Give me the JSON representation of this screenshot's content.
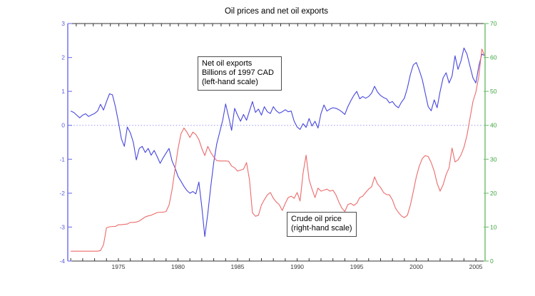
{
  "title": "Oil prices and net oil exports",
  "annotations": {
    "net_exports": {
      "lines": [
        "Net oil exports",
        "Billions of 1997 CAD",
        "(left-hand scale)"
      ]
    },
    "crude_price": {
      "lines": [
        "Crude oil price",
        "(right-hand scale)"
      ]
    }
  },
  "colors": {
    "blue_line": "#4747dd",
    "red_line": "#ec6b6b",
    "left_axis": "#7b7bef",
    "left_label": "#5b5be0",
    "right_axis": "#7cc57c",
    "right_label": "#3fa43f",
    "zero_line": "#9b9bf2",
    "frame": "#333333",
    "tick_label": "#3a3a3a"
  },
  "chart_data": {
    "type": "line",
    "title": "Oil prices and net oil exports",
    "x_start": 1971.0,
    "x_step": 0.25,
    "x_range": [
      1970.75,
      2005.77
    ],
    "x_ticks_labeled": [
      1975,
      1980,
      1985,
      1990,
      1995,
      2000,
      2005
    ],
    "x_ticks_minor_start": 1971,
    "x_ticks_minor_end": 2005,
    "top_tick_count": 50,
    "grid": false,
    "zero_line_left_scale": true,
    "left_axis": {
      "label": "Net oil exports, Billions of 1997 CAD",
      "range": [
        -4,
        3
      ],
      "ticks": [
        3,
        2,
        1,
        0,
        -1,
        -2,
        -3,
        -4
      ]
    },
    "right_axis": {
      "label": "Crude oil price",
      "range": [
        0,
        70
      ],
      "ticks": [
        70,
        60,
        50,
        40,
        30,
        20,
        10,
        0
      ]
    },
    "series": [
      {
        "id": "net-oil-exports",
        "name": "Net oil exports (left-hand scale)",
        "scale": "left",
        "color_key": "blue_line",
        "values": [
          0.42,
          0.38,
          0.3,
          0.22,
          0.3,
          0.34,
          0.26,
          0.31,
          0.35,
          0.42,
          0.62,
          0.45,
          0.7,
          0.93,
          0.9,
          0.55,
          0.1,
          -0.4,
          -0.62,
          -0.05,
          -0.22,
          -0.5,
          -1.02,
          -0.68,
          -0.62,
          -0.8,
          -0.68,
          -0.88,
          -0.74,
          -0.92,
          -1.12,
          -0.96,
          -0.82,
          -0.68,
          -1.05,
          -1.25,
          -1.5,
          -1.65,
          -1.8,
          -1.92,
          -2.0,
          -1.95,
          -2.02,
          -1.67,
          -2.4,
          -3.28,
          -2.6,
          -1.8,
          -1.1,
          -0.55,
          -0.2,
          0.15,
          0.63,
          0.25,
          -0.15,
          0.5,
          0.3,
          0.12,
          0.32,
          0.15,
          0.42,
          0.7,
          0.38,
          0.48,
          0.3,
          0.55,
          0.4,
          0.35,
          0.55,
          0.43,
          0.36,
          0.4,
          0.46,
          0.4,
          0.42,
          0.12,
          -0.05,
          -0.12,
          0.05,
          -0.06,
          0.2,
          -0.02,
          0.12,
          -0.08,
          0.35,
          0.6,
          0.42,
          0.48,
          0.52,
          0.5,
          0.46,
          0.4,
          0.32,
          0.55,
          0.72,
          0.88,
          1.0,
          0.78,
          0.85,
          0.8,
          0.85,
          0.95,
          1.15,
          0.98,
          0.88,
          0.82,
          0.78,
          0.66,
          0.7,
          0.58,
          0.52,
          0.68,
          0.8,
          1.1,
          1.5,
          1.78,
          1.85,
          1.62,
          1.35,
          0.95,
          0.55,
          0.43,
          0.75,
          0.52,
          1.0,
          1.4,
          1.55,
          1.25,
          1.45,
          2.05,
          1.65,
          1.9,
          2.28,
          2.1,
          1.75,
          1.4,
          1.25,
          1.75,
          2.1,
          2.05
        ]
      },
      {
        "id": "crude-oil-price",
        "name": "Crude oil price (right-hand scale)",
        "scale": "right",
        "color_key": "red_line",
        "values": [
          2.9,
          2.9,
          2.9,
          2.9,
          2.9,
          2.9,
          2.9,
          2.9,
          2.9,
          2.9,
          3.1,
          4.8,
          9.8,
          10.1,
          10.2,
          10.2,
          10.7,
          10.7,
          10.8,
          10.9,
          11.4,
          11.4,
          11.5,
          11.8,
          12.4,
          13.0,
          13.3,
          13.5,
          13.9,
          14.3,
          14.4,
          14.4,
          14.6,
          16.5,
          21.0,
          27.0,
          33.0,
          37.5,
          39.2,
          38.0,
          36.4,
          38.0,
          37.3,
          35.8,
          33.2,
          31.1,
          33.8,
          32.0,
          30.7,
          29.6,
          29.5,
          29.5,
          29.5,
          29.4,
          28.0,
          27.5,
          26.5,
          26.8,
          27.1,
          29.0,
          24.0,
          14.2,
          13.2,
          13.5,
          16.5,
          18.1,
          19.5,
          20.2,
          18.5,
          17.4,
          16.6,
          14.9,
          17.0,
          18.7,
          19.1,
          18.5,
          20.2,
          17.7,
          26.0,
          31.2,
          24.0,
          21.2,
          18.7,
          21.5,
          20.6,
          20.9,
          21.2,
          20.6,
          20.9,
          19.5,
          17.4,
          15.6,
          14.6,
          16.6,
          17.0,
          16.4,
          17.0,
          18.7,
          19.1,
          20.2,
          21.2,
          21.9,
          24.8,
          22.7,
          21.7,
          20.2,
          19.6,
          19.5,
          18.0,
          15.6,
          14.3,
          13.3,
          12.8,
          13.5,
          16.5,
          20.5,
          24.8,
          28.0,
          30.2,
          31.1,
          30.8,
          29.0,
          26.5,
          22.9,
          20.6,
          22.5,
          25.5,
          27.5,
          33.3,
          29.2,
          29.8,
          31.3,
          33.5,
          37.0,
          42.0,
          47.0,
          49.8,
          54.5,
          62.5,
          60.3
        ]
      }
    ]
  }
}
